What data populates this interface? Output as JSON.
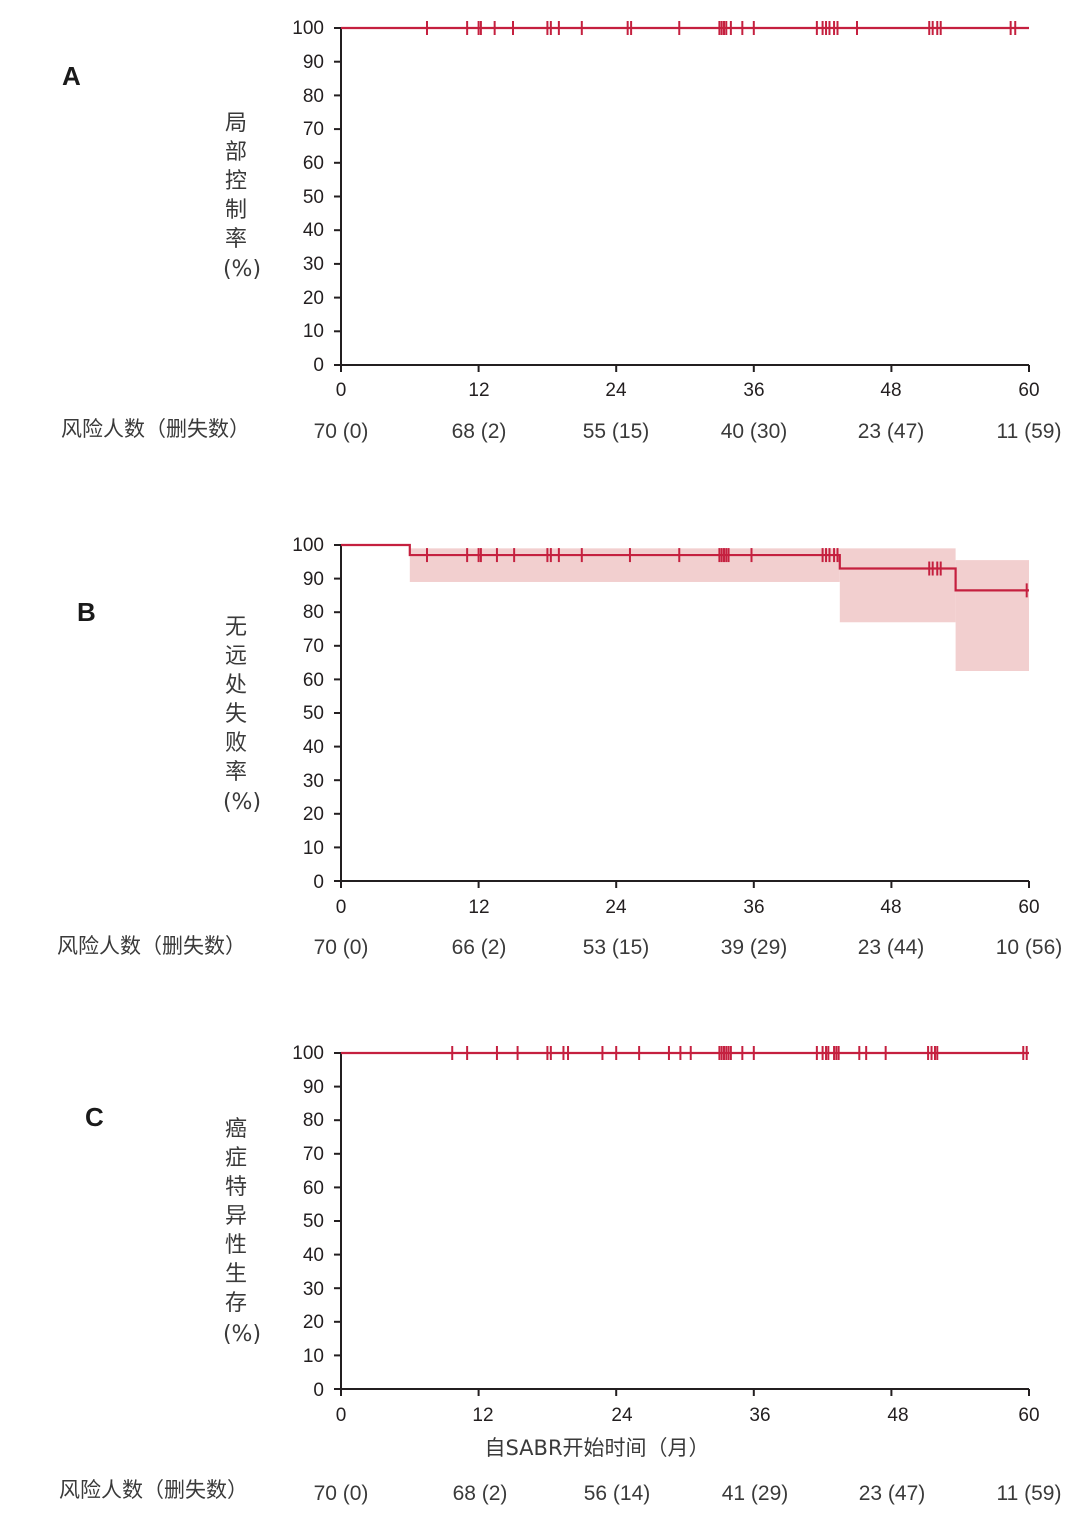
{
  "colors": {
    "curve": "#c5203f",
    "band": "#f2cfcf",
    "axis": "#231f20"
  },
  "chart_data": [
    {
      "panel_label": "A",
      "type": "line",
      "ylabel": "局部控制率 (%)",
      "ylabel_chars": [
        "局",
        "部",
        "控",
        "制",
        "率",
        "(%)"
      ],
      "xlim": [
        0,
        60
      ],
      "ylim": [
        0,
        100
      ],
      "x_ticks": [
        "0",
        "12",
        "24",
        "36",
        "48",
        "60"
      ],
      "y_ticks": [
        "0",
        "10",
        "20",
        "30",
        "40",
        "50",
        "60",
        "70",
        "80",
        "90",
        "100"
      ],
      "step": [
        [
          0,
          100
        ],
        [
          60,
          100
        ]
      ],
      "ci": [],
      "censor_times": [
        7.5,
        11,
        12,
        12.2,
        13.4,
        15,
        18,
        18.3,
        19,
        21,
        25,
        25.3,
        29.5,
        33,
        33.2,
        33.4,
        33.6,
        34,
        35,
        36,
        41.5,
        42,
        42.3,
        42.6,
        43,
        43.3,
        45,
        51.3,
        51.6,
        52,
        52.3,
        58.4,
        58.8
      ],
      "risk_label": "风险人数（删失数）",
      "risk_table": [
        "70 (0)",
        "68 (2)",
        "55 (15)",
        "40 (30)",
        "23 (47)",
        "11 (59)"
      ],
      "grid": false
    },
    {
      "panel_label": "B",
      "type": "line",
      "ylabel": "无远处失败率 (%)",
      "ylabel_chars": [
        "无",
        "远",
        "处",
        "失",
        "败",
        "率",
        "(%)"
      ],
      "xlim": [
        0,
        60
      ],
      "ylim": [
        0,
        100
      ],
      "x_ticks": [
        "0",
        "12",
        "24",
        "36",
        "48",
        "60"
      ],
      "y_ticks": [
        "0",
        "10",
        "20",
        "30",
        "40",
        "50",
        "60",
        "70",
        "80",
        "90",
        "100"
      ],
      "step": [
        [
          0,
          100
        ],
        [
          6,
          100
        ],
        [
          6,
          97
        ],
        [
          43.5,
          97
        ],
        [
          43.5,
          93
        ],
        [
          53.6,
          93
        ],
        [
          53.6,
          86.5
        ],
        [
          60,
          86.5
        ]
      ],
      "ci": [
        {
          "x0": 6,
          "x1": 43.5,
          "lower": 89,
          "upper": 99
        },
        {
          "x0": 43.5,
          "x1": 53.6,
          "lower": 77,
          "upper": 99
        },
        {
          "x0": 53.6,
          "x1": 60,
          "lower": 62.5,
          "upper": 95.5
        }
      ],
      "censor_times": [
        7.5,
        11,
        12,
        12.2,
        13.6,
        15.1,
        18,
        18.3,
        19,
        21,
        25.2,
        29.5,
        33,
        33.2,
        33.4,
        33.6,
        33.8,
        35.8,
        42,
        42.3,
        42.6,
        43,
        43.3,
        51.3,
        51.6,
        52,
        52.3,
        59.8
      ],
      "risk_label": "风险人数（删失数）",
      "risk_table": [
        "70 (0)",
        "66 (2)",
        "53 (15)",
        "39 (29)",
        "23 (44)",
        "10 (56)"
      ],
      "grid": false
    },
    {
      "panel_label": "C",
      "type": "line",
      "ylabel": "癌症特异性生存 (%)",
      "ylabel_chars": [
        "癌",
        "症",
        "特",
        "异",
        "性",
        "生",
        "存",
        "(%)"
      ],
      "xlabel": "自SABR开始时间（月）",
      "xlim": [
        0,
        60
      ],
      "ylim": [
        0,
        100
      ],
      "x_ticks": [
        "0",
        "12",
        "24",
        "36",
        "48",
        "60"
      ],
      "y_ticks": [
        "0",
        "10",
        "20",
        "30",
        "40",
        "50",
        "60",
        "70",
        "80",
        "90",
        "100"
      ],
      "step": [
        [
          0,
          100
        ],
        [
          60,
          100
        ]
      ],
      "ci": [],
      "censor_times": [
        9.7,
        11,
        13.6,
        15.4,
        18,
        18.3,
        19.4,
        19.8,
        22.8,
        24,
        26,
        28.6,
        29.6,
        30.5,
        33,
        33.2,
        33.4,
        33.6,
        33.8,
        34,
        35,
        36,
        41.5,
        42,
        42.3,
        42.5,
        43,
        43.2,
        43.4,
        45.2,
        45.8,
        47.5,
        51.2,
        51.5,
        51.8,
        52,
        59.5,
        59.8
      ],
      "risk_label": "风险人数（删失数）",
      "risk_table": [
        "70 (0)",
        "68 (2)",
        "56 (14)",
        "41 (29)",
        "23 (47)",
        "11 (59)"
      ],
      "grid": false
    }
  ]
}
